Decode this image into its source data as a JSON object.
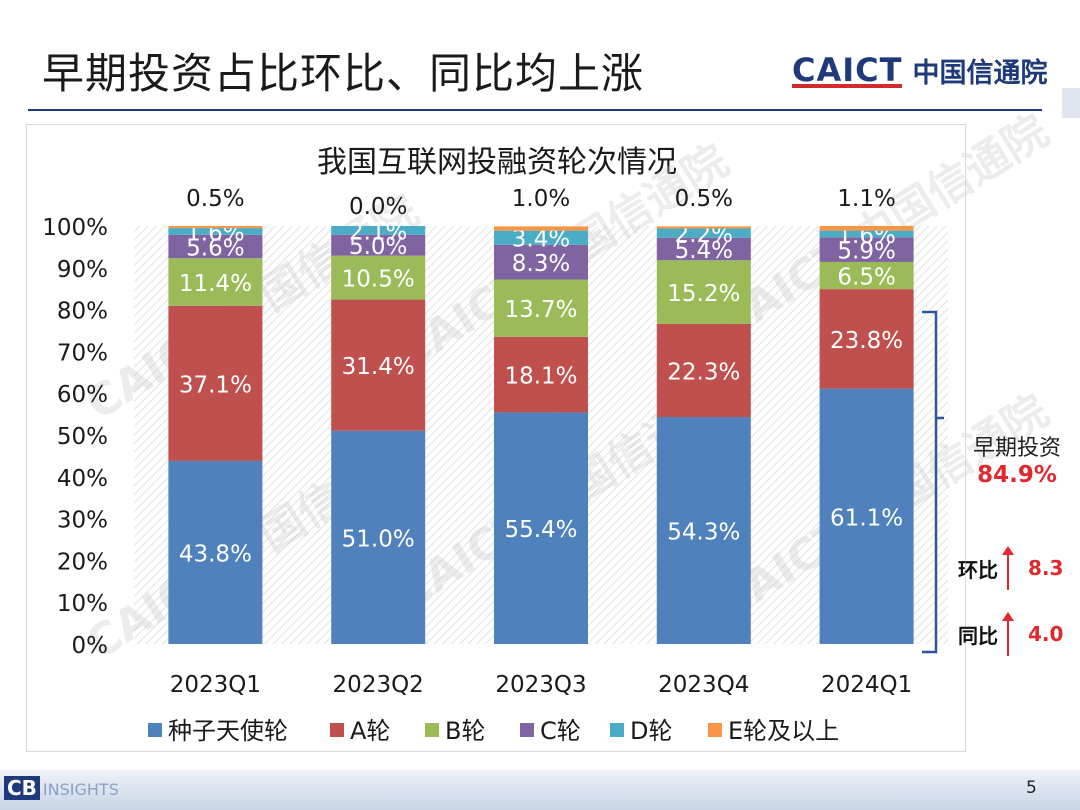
{
  "slide": {
    "title": "早期投资占比环比、同比均上涨",
    "logo_en": "CAICT",
    "logo_cn": "中国信通院",
    "page_number": "5",
    "footer_brand_left": "CB",
    "footer_brand_right": "INSIGHTS"
  },
  "annotations": {
    "bracket_label": "早期投资",
    "bracket_value": "84.9%",
    "qoq_label": "环比",
    "qoq_value": "8.3",
    "yoy_label": "同比",
    "yoy_value": "4.0"
  },
  "watermark": "CAICT 中国信通院",
  "colors": {
    "seed": "#4f81bd",
    "a": "#c0504d",
    "b": "#9bbb59",
    "c": "#8064a2",
    "d": "#4bacc6",
    "e": "#f79646",
    "accent_red": "#e0282d",
    "navy": "#1f3a7a"
  },
  "chart_data": {
    "type": "bar",
    "stacked": true,
    "title": "我国互联网投融资轮次情况",
    "categories": [
      "2023Q1",
      "2023Q2",
      "2023Q3",
      "2023Q4",
      "2024Q1"
    ],
    "ylim": [
      0,
      100
    ],
    "yticks": [
      "0%",
      "10%",
      "20%",
      "30%",
      "40%",
      "50%",
      "60%",
      "70%",
      "80%",
      "90%",
      "100%"
    ],
    "legend_position": "bottom",
    "series": [
      {
        "name": "种子天使轮",
        "values": [
          43.8,
          51.0,
          55.4,
          54.3,
          61.1
        ],
        "labels": [
          "43.8%",
          "51.0%",
          "55.4%",
          "54.3%",
          "61.1%"
        ]
      },
      {
        "name": "A轮",
        "values": [
          37.1,
          31.4,
          18.1,
          22.3,
          23.8
        ],
        "labels": [
          "37.1%",
          "31.4%",
          "18.1%",
          "22.3%",
          "23.8%"
        ]
      },
      {
        "name": "B轮",
        "values": [
          11.4,
          10.5,
          13.7,
          15.2,
          6.5
        ],
        "labels": [
          "11.4%",
          "10.5%",
          "13.7%",
          "15.2%",
          "6.5%"
        ]
      },
      {
        "name": "C轮",
        "values": [
          5.6,
          5.0,
          8.3,
          5.4,
          5.9
        ],
        "labels": [
          "5.6%",
          "5.0%",
          "8.3%",
          "5.4%",
          "5.9%"
        ]
      },
      {
        "name": "D轮",
        "values": [
          1.6,
          2.1,
          3.4,
          2.2,
          1.6
        ],
        "labels": [
          "1.6%",
          "2.1%",
          "3.4%",
          "2.2%",
          "1.6%"
        ]
      },
      {
        "name": "E轮及以上",
        "values": [
          0.5,
          0.0,
          1.0,
          0.5,
          1.1
        ],
        "labels": [
          "0.5%",
          "0.0%",
          "1.0%",
          "0.5%",
          "1.1%"
        ]
      }
    ]
  }
}
